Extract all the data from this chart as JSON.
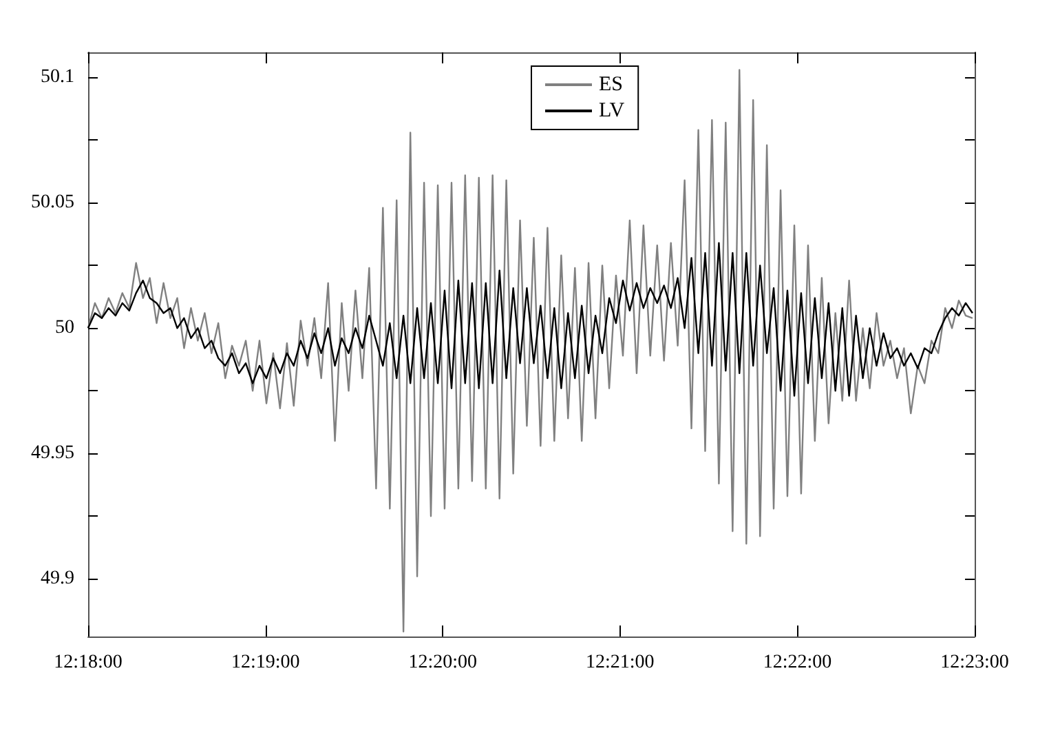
{
  "chart_data": {
    "type": "line",
    "x": [
      12.3,
      12.30064,
      12.30129,
      12.30193,
      12.30258,
      12.30322,
      12.30387,
      12.30451,
      12.30516,
      12.3058,
      12.30644,
      12.30709,
      12.30773,
      12.30838,
      12.30902,
      12.30967,
      12.31031,
      12.31096,
      12.3116,
      12.31224,
      12.31289,
      12.31353,
      12.31418,
      12.31482,
      12.31547,
      12.31611,
      12.31676,
      12.3174,
      12.31804,
      12.31869,
      12.31933,
      12.31998,
      12.32062,
      12.32127,
      12.32191,
      12.32256,
      12.3232,
      12.32384,
      12.32449,
      12.32513,
      12.32578,
      12.32642,
      12.32707,
      12.32771,
      12.32836,
      12.329,
      12.32964,
      12.33029,
      12.33093,
      12.33158,
      12.33222,
      12.33287,
      12.33351,
      12.33416,
      12.3348,
      12.33544,
      12.33609,
      12.33673,
      12.33738,
      12.33802,
      12.33867,
      12.33931,
      12.33996,
      12.3406,
      12.34124,
      12.34189,
      12.34253,
      12.34318,
      12.34382,
      12.34447,
      12.34511,
      12.34576,
      12.3464,
      12.34704,
      12.34769,
      12.34833,
      12.34898,
      12.34962,
      12.35027,
      12.35091,
      12.35156,
      12.3522,
      12.35284,
      12.35349,
      12.35413,
      12.35478,
      12.35542,
      12.35607,
      12.35671,
      12.35736,
      12.358,
      12.35864,
      12.35929,
      12.35993,
      12.36058,
      12.36122,
      12.36187,
      12.36251,
      12.36316,
      12.3638,
      12.36444,
      12.36509,
      12.36573,
      12.36638,
      12.36702,
      12.36767,
      12.36831,
      12.36896,
      12.3696,
      12.37024,
      12.37089,
      12.37153,
      12.37218,
      12.37282,
      12.37347,
      12.37411,
      12.37476,
      12.3754,
      12.37604,
      12.37669,
      12.37733,
      12.37798,
      12.37862,
      12.37927,
      12.37991,
      12.38056,
      12.3812,
      12.38184,
      12.38249,
      12.38313
    ],
    "series": [
      {
        "name": "ES",
        "color": "#808080",
        "values": [
          50.0,
          50.01,
          50.004,
          50.012,
          50.006,
          50.014,
          50.008,
          50.026,
          50.012,
          50.02,
          50.002,
          50.018,
          50.004,
          50.012,
          49.992,
          50.008,
          49.995,
          50.006,
          49.99,
          50.002,
          49.98,
          49.993,
          49.985,
          49.995,
          49.975,
          49.995,
          49.97,
          49.99,
          49.968,
          49.994,
          49.969,
          50.003,
          49.985,
          50.004,
          49.98,
          50.018,
          49.955,
          50.01,
          49.975,
          50.015,
          49.98,
          50.024,
          49.936,
          50.048,
          49.928,
          50.051,
          49.879,
          50.078,
          49.901,
          50.058,
          49.925,
          50.057,
          49.928,
          50.058,
          49.936,
          50.061,
          49.939,
          50.06,
          49.936,
          50.061,
          49.932,
          50.059,
          49.942,
          50.043,
          49.961,
          50.036,
          49.953,
          50.04,
          49.955,
          50.029,
          49.964,
          50.024,
          49.955,
          50.026,
          49.964,
          50.025,
          49.976,
          50.021,
          49.989,
          50.043,
          49.982,
          50.041,
          49.989,
          50.033,
          49.987,
          50.034,
          49.993,
          50.059,
          49.96,
          50.079,
          49.951,
          50.083,
          49.938,
          50.082,
          49.919,
          50.103,
          49.914,
          50.091,
          49.917,
          50.073,
          49.928,
          50.055,
          49.933,
          50.041,
          49.934,
          50.033,
          49.955,
          50.02,
          49.962,
          50.006,
          49.971,
          50.019,
          49.971,
          50.0,
          49.976,
          50.006,
          49.985,
          49.995,
          49.98,
          49.992,
          49.966,
          49.985,
          49.978,
          49.995,
          49.99,
          50.008,
          50.0,
          50.011,
          50.005,
          50.004
        ]
      },
      {
        "name": "LV",
        "color": "#000000",
        "values": [
          50.0,
          50.006,
          50.004,
          50.008,
          50.005,
          50.01,
          50.007,
          50.014,
          50.019,
          50.012,
          50.01,
          50.006,
          50.008,
          50.0,
          50.004,
          49.996,
          50.0,
          49.992,
          49.995,
          49.988,
          49.985,
          49.99,
          49.982,
          49.986,
          49.978,
          49.985,
          49.98,
          49.988,
          49.982,
          49.99,
          49.985,
          49.995,
          49.988,
          49.998,
          49.99,
          50.0,
          49.985,
          49.996,
          49.99,
          50.0,
          49.992,
          50.005,
          49.995,
          49.985,
          50.002,
          49.98,
          50.005,
          49.978,
          50.008,
          49.98,
          50.01,
          49.978,
          50.015,
          49.976,
          50.019,
          49.978,
          50.018,
          49.976,
          50.018,
          49.978,
          50.023,
          49.98,
          50.016,
          49.986,
          50.016,
          49.986,
          50.009,
          49.98,
          50.008,
          49.976,
          50.006,
          49.98,
          50.009,
          49.982,
          50.005,
          49.99,
          50.012,
          50.002,
          50.019,
          50.007,
          50.018,
          50.008,
          50.016,
          50.01,
          50.017,
          50.008,
          50.02,
          50.0,
          50.028,
          49.99,
          50.03,
          49.985,
          50.034,
          49.983,
          50.03,
          49.982,
          50.03,
          49.985,
          50.025,
          49.99,
          50.016,
          49.975,
          50.015,
          49.973,
          50.014,
          49.978,
          50.012,
          49.98,
          50.01,
          49.975,
          50.008,
          49.973,
          50.005,
          49.98,
          50.0,
          49.985,
          49.998,
          49.988,
          49.992,
          49.985,
          49.99,
          49.984,
          49.992,
          49.99,
          49.998,
          50.004,
          50.008,
          50.005,
          50.01,
          50.006
        ]
      }
    ],
    "xlim": [
      12.3,
      12.38333
    ],
    "xticks": [
      {
        "value": 12.3,
        "label": "12:18:00"
      },
      {
        "value": 12.31667,
        "label": "12:19:00"
      },
      {
        "value": 12.33333,
        "label": "12:20:00"
      },
      {
        "value": 12.35,
        "label": "12:21:00"
      },
      {
        "value": 12.36667,
        "label": "12:22:00"
      },
      {
        "value": 12.38333,
        "label": "12:23:00"
      }
    ],
    "ylim": [
      49.877,
      50.11
    ],
    "yticks": [
      {
        "value": 49.9,
        "label": "49.9"
      },
      {
        "value": 49.925,
        "label": null
      },
      {
        "value": 49.95,
        "label": "49.95"
      },
      {
        "value": 49.975,
        "label": null
      },
      {
        "value": 50,
        "label": "50"
      },
      {
        "value": 50.025,
        "label": null
      },
      {
        "value": 50.05,
        "label": "50.05"
      },
      {
        "value": 50.075,
        "label": null
      },
      {
        "value": 50.1,
        "label": "50.1"
      }
    ],
    "legend": "top",
    "grid": false
  }
}
